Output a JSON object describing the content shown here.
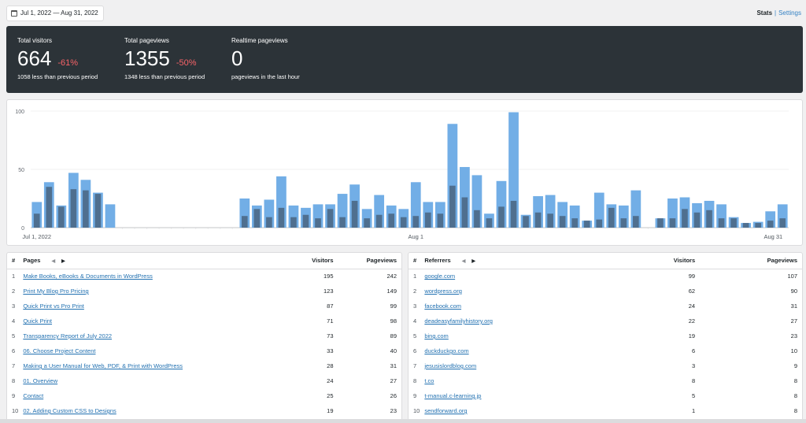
{
  "header": {
    "date_range": "Jul 1, 2022 — Aug 31, 2022",
    "nav_stats": "Stats",
    "nav_sep": "|",
    "nav_settings": "Settings"
  },
  "summary": {
    "visitors": {
      "label": "Total visitors",
      "value": "664",
      "change": "-61%",
      "sub": "1058 less than previous period"
    },
    "pageviews": {
      "label": "Total pageviews",
      "value": "1355",
      "change": "-50%",
      "sub": "1348 less than previous period"
    },
    "realtime": {
      "label": "Realtime pageviews",
      "value": "0",
      "sub": "pageviews in the last hour"
    }
  },
  "colors": {
    "visitors_bar": "#72aee6",
    "pageviews_bar": "#4f6f8f",
    "change_negative": "#f86368",
    "link": "#2271b1"
  },
  "chart_data": {
    "type": "bar",
    "ylim": [
      0,
      100
    ],
    "yticks": [
      "0",
      "50",
      "100"
    ],
    "xtick_labels": [
      "Jul 1, 2022",
      "Aug 1",
      "Aug 31"
    ],
    "x_days": 62,
    "series": [
      {
        "values": [
          22,
          39,
          19,
          47,
          41,
          30,
          20,
          0,
          0,
          0,
          0,
          0,
          0,
          0,
          0,
          0,
          0,
          25,
          19,
          24,
          44,
          19,
          17,
          20,
          20,
          29,
          37,
          16,
          28,
          19,
          16,
          39,
          22,
          22,
          89,
          52,
          45,
          12,
          40,
          99,
          11,
          27,
          28,
          22,
          19,
          6,
          30,
          20,
          19,
          32,
          0,
          8,
          25,
          26,
          21,
          23,
          20,
          9,
          4,
          5,
          14,
          20
        ]
      },
      {
        "values": [
          12,
          35,
          18,
          33,
          32,
          29,
          0,
          0,
          0,
          0,
          0,
          0,
          0,
          0,
          0,
          0,
          0,
          10,
          16,
          9,
          17,
          9,
          11,
          8,
          16,
          9,
          23,
          8,
          11,
          12,
          9,
          10,
          13,
          12,
          36,
          26,
          15,
          8,
          18,
          23,
          10,
          13,
          12,
          10,
          8,
          6,
          7,
          17,
          8,
          10,
          0,
          8,
          8,
          16,
          13,
          15,
          8,
          8,
          4,
          4,
          6,
          8
        ]
      }
    ]
  },
  "pages": {
    "col_index": "#",
    "col_name": "Pages",
    "col_visitors": "Visitors",
    "col_pageviews": "Pageviews",
    "rows": [
      {
        "i": "1",
        "name": "Make Books, eBooks & Documents in WordPress",
        "visitors": "195",
        "pageviews": "242"
      },
      {
        "i": "2",
        "name": "Print My Blog Pro Pricing",
        "visitors": "123",
        "pageviews": "149"
      },
      {
        "i": "3",
        "name": "Quick Print vs Pro Print",
        "visitors": "87",
        "pageviews": "99"
      },
      {
        "i": "4",
        "name": "Quick Print",
        "visitors": "71",
        "pageviews": "98"
      },
      {
        "i": "5",
        "name": "Transparency Report of July 2022",
        "visitors": "73",
        "pageviews": "89"
      },
      {
        "i": "6",
        "name": "06. Choose Project Content",
        "visitors": "33",
        "pageviews": "40"
      },
      {
        "i": "7",
        "name": "Making a User Manual for Web, PDF, & Print with WordPress",
        "visitors": "28",
        "pageviews": "31"
      },
      {
        "i": "8",
        "name": "01. Overview",
        "visitors": "24",
        "pageviews": "27"
      },
      {
        "i": "9",
        "name": "Contact",
        "visitors": "25",
        "pageviews": "26"
      },
      {
        "i": "10",
        "name": "02. Adding Custom CSS to Designs",
        "visitors": "19",
        "pageviews": "23"
      }
    ]
  },
  "referrers": {
    "col_index": "#",
    "col_name": "Referrers",
    "col_visitors": "Visitors",
    "col_pageviews": "Pageviews",
    "rows": [
      {
        "i": "1",
        "name": "google.com",
        "visitors": "99",
        "pageviews": "107"
      },
      {
        "i": "2",
        "name": "wordpress.org",
        "visitors": "62",
        "pageviews": "90"
      },
      {
        "i": "3",
        "name": "facebook.com",
        "visitors": "24",
        "pageviews": "31"
      },
      {
        "i": "4",
        "name": "deadeasyfamilyhistory.org",
        "visitors": "22",
        "pageviews": "27"
      },
      {
        "i": "5",
        "name": "bing.com",
        "visitors": "19",
        "pageviews": "23"
      },
      {
        "i": "6",
        "name": "duckduckgo.com",
        "visitors": "6",
        "pageviews": "10"
      },
      {
        "i": "7",
        "name": "jesusislordblog.com",
        "visitors": "3",
        "pageviews": "9"
      },
      {
        "i": "8",
        "name": "t.co",
        "visitors": "8",
        "pageviews": "8"
      },
      {
        "i": "9",
        "name": "t-manual.c-learning.jp",
        "visitors": "5",
        "pageviews": "8"
      },
      {
        "i": "10",
        "name": "sendforward.org",
        "visitors": "1",
        "pageviews": "8"
      }
    ]
  }
}
